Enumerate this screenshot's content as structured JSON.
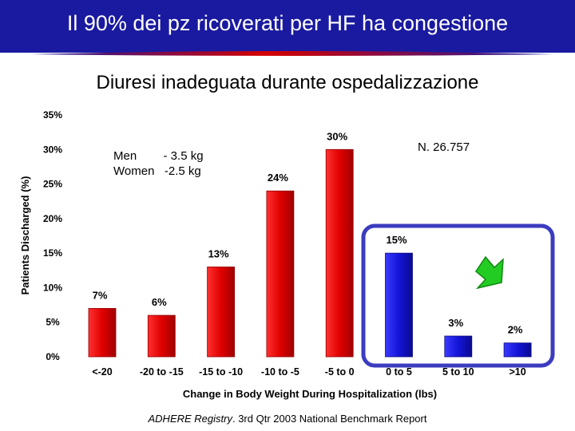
{
  "header": {
    "title": "Il 90% dei pz ricoverati per HF ha congestione",
    "subtitle": "Diuresi inadeguata durante ospedalizzazione"
  },
  "notes": {
    "weight_loss": "Men        - 3.5 kg\nWomen   -2.5 kg",
    "n": "N. 26.757"
  },
  "source": {
    "italic": "ADHERE Registry",
    "rest": ". 3rd Qtr 2003 National Benchmark Report"
  },
  "colors": {
    "title_bar": "#1a1aa0",
    "bar_red": "#e40000",
    "bar_blue": "#1414d8",
    "highlight_box": "#3c3cc0",
    "arrow": "#22cc22"
  },
  "icons": {
    "arrow": "green-arrow-icon"
  },
  "chart_data": {
    "type": "bar",
    "xlabel": "Change in Body Weight During Hospitalization (lbs)",
    "ylabel": "Patients Discharged (%)",
    "ylim": [
      0,
      35
    ],
    "yticks": [
      "0%",
      "5%",
      "10%",
      "15%",
      "20%",
      "25%",
      "30%",
      "35%"
    ],
    "categories": [
      "<-20",
      "-20 to -15",
      "-15 to -10",
      "-10 to -5",
      "-5 to 0",
      "0 to 5",
      "5 to 10",
      ">10"
    ],
    "values": [
      7,
      6,
      13,
      24,
      30,
      15,
      3,
      2
    ],
    "value_labels": [
      "7%",
      "6%",
      "13%",
      "24%",
      "30%",
      "15%",
      "3%",
      "2%"
    ],
    "bar_colors": [
      "#e40000",
      "#e40000",
      "#e40000",
      "#e40000",
      "#e40000",
      "#1414d8",
      "#1414d8",
      "#1414d8"
    ],
    "grid": false
  }
}
